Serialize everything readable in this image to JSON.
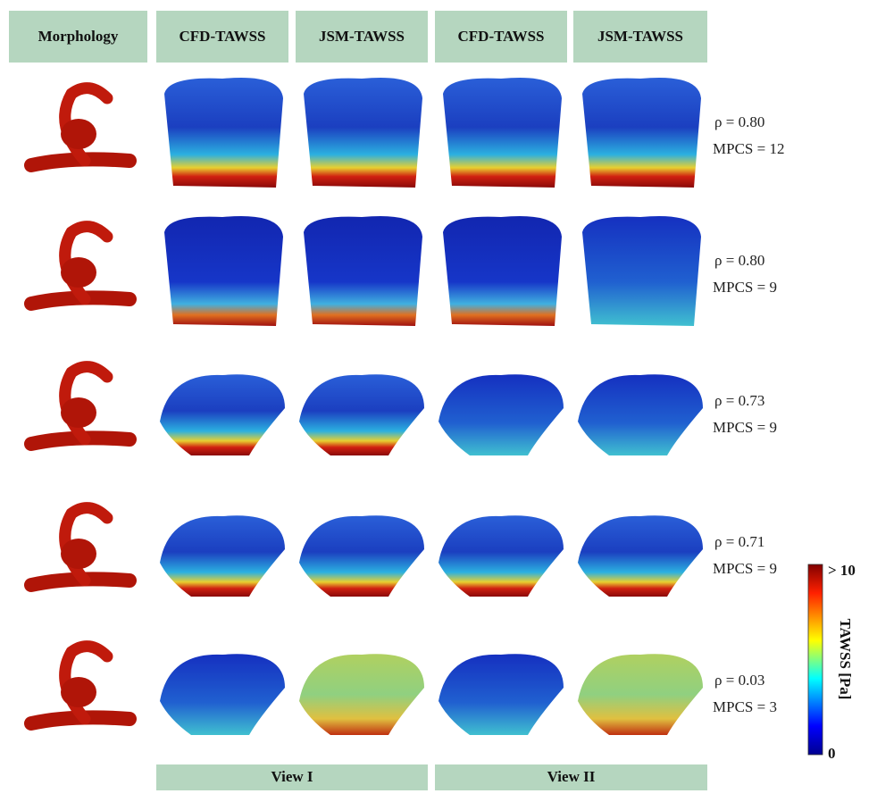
{
  "header": {
    "columns": [
      "Morphology",
      "CFD-TAWSS",
      "JSM-TAWSS",
      "CFD-TAWSS",
      "JSM-TAWSS"
    ]
  },
  "rows": [
    {
      "rho": "ρ = 0.80",
      "mpcs": "MPCS = 12"
    },
    {
      "rho": "ρ = 0.80",
      "mpcs": "MPCS = 9"
    },
    {
      "rho": "ρ = 0.73",
      "mpcs": "MPCS = 9"
    },
    {
      "rho": "ρ = 0.71",
      "mpcs": "MPCS = 9"
    },
    {
      "rho": "ρ = 0.03",
      "mpcs": "MPCS = 3"
    }
  ],
  "footer": {
    "views": [
      "View I",
      "View II"
    ]
  },
  "colorbar": {
    "title": "TAWSS [Pa]",
    "max_label": "> 10",
    "min_label": "0"
  }
}
